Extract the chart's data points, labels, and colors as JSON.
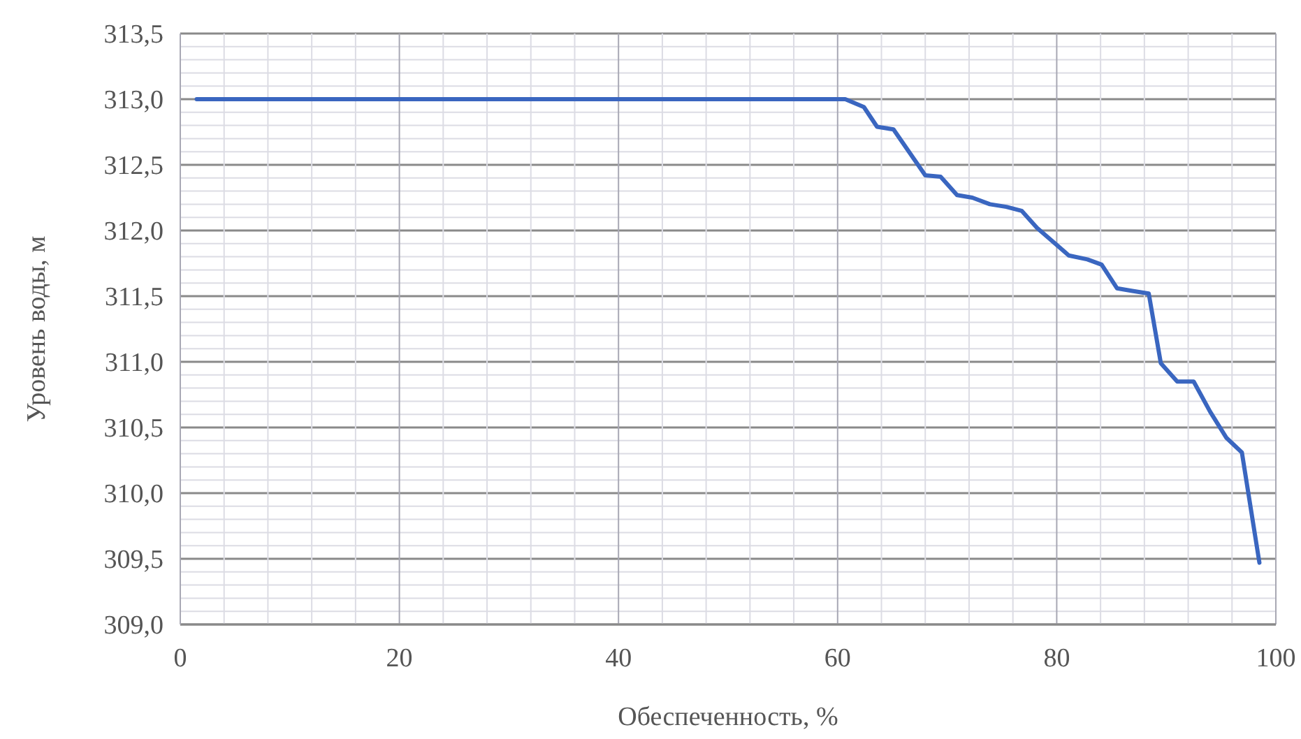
{
  "chart_data": {
    "type": "line",
    "xlabel": "Обеспеченность, %",
    "ylabel": "Уровень воды, м",
    "xlim": [
      0,
      100
    ],
    "ylim": [
      309,
      313.5
    ],
    "xticks": [
      0,
      {
        "value": 4,
        "label": null
      },
      {
        "value": 8,
        "label": null
      },
      {
        "value": 12,
        "label": null
      },
      {
        "value": 16,
        "label": null
      },
      20,
      {
        "value": 24,
        "label": null
      },
      {
        "value": 28,
        "label": null
      },
      {
        "value": 32,
        "label": null
      },
      {
        "value": 36,
        "label": null
      },
      40,
      {
        "value": 44,
        "label": null
      },
      {
        "value": 48,
        "label": null
      },
      {
        "value": 52,
        "label": null
      },
      {
        "value": 56,
        "label": null
      },
      60,
      {
        "value": 64,
        "label": null
      },
      {
        "value": 68,
        "label": null
      },
      {
        "value": 72,
        "label": null
      },
      {
        "value": 76,
        "label": null
      },
      80,
      {
        "value": 84,
        "label": null
      },
      {
        "value": 88,
        "label": null
      },
      {
        "value": 92,
        "label": null
      },
      {
        "value": 96,
        "label": null
      },
      100
    ],
    "yticks": [
      {
        "value": 309,
        "label": "309,0"
      },
      {
        "value": 309.1,
        "label": null
      },
      {
        "value": 309.2,
        "label": null
      },
      {
        "value": 309.3,
        "label": null
      },
      {
        "value": 309.4,
        "label": null
      },
      {
        "value": 309.5,
        "label": "309,5"
      },
      {
        "value": 309.6,
        "label": null
      },
      {
        "value": 309.7,
        "label": null
      },
      {
        "value": 309.8,
        "label": null
      },
      {
        "value": 309.9,
        "label": null
      },
      {
        "value": 310,
        "label": "310,0"
      },
      {
        "value": 310.1,
        "label": null
      },
      {
        "value": 310.2,
        "label": null
      },
      {
        "value": 310.3,
        "label": null
      },
      {
        "value": 310.4,
        "label": null
      },
      {
        "value": 310.5,
        "label": "310,5"
      },
      {
        "value": 310.6,
        "label": null
      },
      {
        "value": 310.7,
        "label": null
      },
      {
        "value": 310.8,
        "label": null
      },
      {
        "value": 310.9,
        "label": null
      },
      {
        "value": 311,
        "label": "311,0"
      },
      {
        "value": 311.1,
        "label": null
      },
      {
        "value": 311.2,
        "label": null
      },
      {
        "value": 311.3,
        "label": null
      },
      {
        "value": 311.4,
        "label": null
      },
      {
        "value": 311.5,
        "label": "311,5"
      },
      {
        "value": 311.6,
        "label": null
      },
      {
        "value": 311.7,
        "label": null
      },
      {
        "value": 311.8,
        "label": null
      },
      {
        "value": 311.9,
        "label": null
      },
      {
        "value": 312,
        "label": "312,0"
      },
      {
        "value": 312.1,
        "label": null
      },
      {
        "value": 312.2,
        "label": null
      },
      {
        "value": 312.3,
        "label": null
      },
      {
        "value": 312.4,
        "label": null
      },
      {
        "value": 312.5,
        "label": "312,5"
      },
      {
        "value": 312.6,
        "label": null
      },
      {
        "value": 312.7,
        "label": null
      },
      {
        "value": 312.8,
        "label": null
      },
      {
        "value": 312.9,
        "label": null
      },
      {
        "value": 313,
        "label": "313,0"
      },
      {
        "value": 313.1,
        "label": null
      },
      {
        "value": 313.2,
        "label": null
      },
      {
        "value": 313.3,
        "label": null
      },
      {
        "value": 313.4,
        "label": null
      },
      {
        "value": 313.5,
        "label": "313,5"
      }
    ],
    "grid": true,
    "marker": "none",
    "line_style": "solid",
    "series": [
      {
        "color": "#3a66c0",
        "x": [
          1.5,
          60.7,
          62.4,
          63.6,
          65.1,
          68.0,
          69.4,
          70.9,
          72.3,
          73.9,
          75.4,
          76.8,
          78.2,
          81.1,
          82.8,
          84.1,
          85.5,
          86.9,
          88.4,
          89.5,
          91.0,
          92.5,
          94.0,
          95.5,
          96.9,
          98.5
        ],
        "values": [
          313.0,
          313.0,
          312.94,
          312.79,
          312.77,
          312.42,
          312.41,
          312.27,
          312.25,
          312.2,
          312.18,
          312.15,
          312.02,
          311.81,
          311.78,
          311.74,
          311.56,
          311.54,
          311.52,
          310.99,
          310.85,
          310.85,
          310.62,
          310.42,
          310.31,
          309.47
        ]
      }
    ]
  }
}
